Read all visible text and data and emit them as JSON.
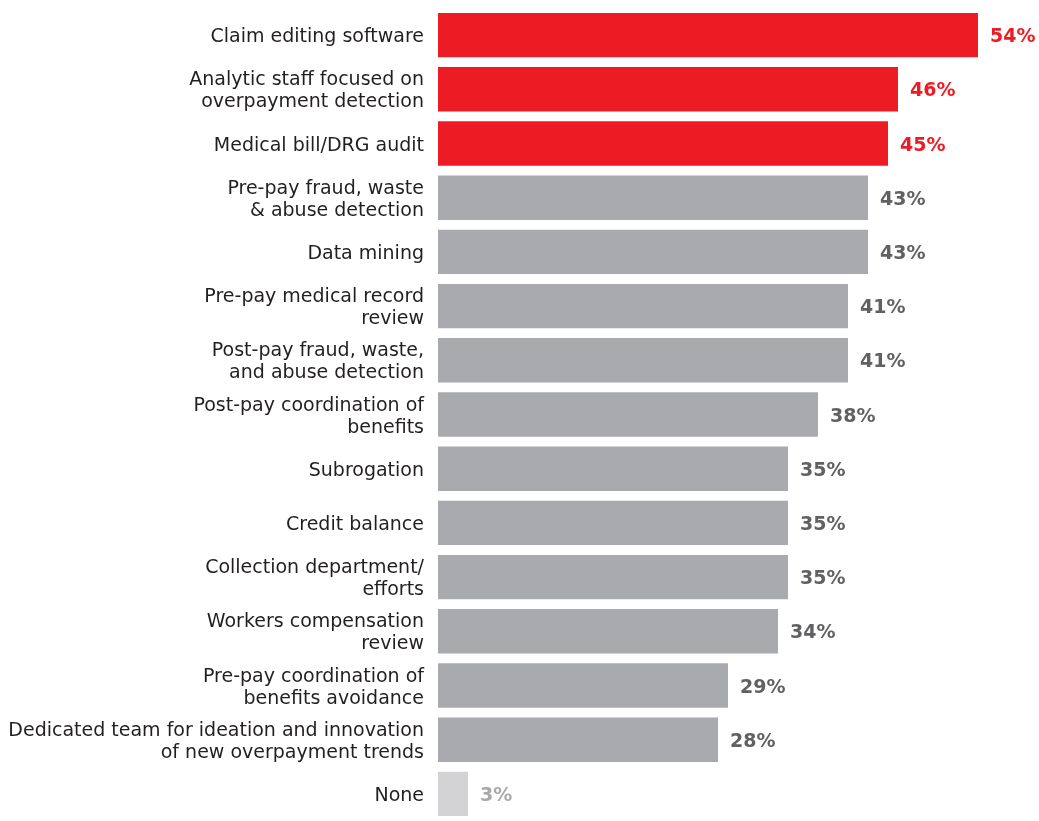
{
  "chart_data": {
    "type": "bar",
    "orientation": "horizontal",
    "categories": [
      "Claim editing software",
      "Analytic staff focused on\noverpayment detection",
      "Medical bill/DRG audit",
      "Pre-pay fraud, waste\n& abuse detection",
      "Data mining",
      "Pre-pay medical record\nreview",
      "Post-pay fraud, waste,\nand abuse detection",
      "Post-pay coordination of\nbenefits",
      "Subrogation",
      "Credit balance",
      "Collection department/\nefforts",
      "Workers compensation\nreview",
      "Pre-pay coordination of\nbenefits avoidance",
      "Dedicated team for ideation and innovation\nof new overpayment trends",
      "None"
    ],
    "values": [
      54,
      46,
      45,
      43,
      43,
      41,
      41,
      38,
      35,
      35,
      35,
      34,
      29,
      28,
      3
    ],
    "colors": [
      "#ed1c24",
      "#ed1c24",
      "#ed1c24",
      "#a9aaae",
      "#a9aaae",
      "#a9aaae",
      "#a9aaae",
      "#a9aaae",
      "#a9aaae",
      "#a9aaae",
      "#a9aaae",
      "#a9aaae",
      "#a9aaae",
      "#a9aaae",
      "#d3d3d5"
    ],
    "value_labels": [
      "54%",
      "46%",
      "45%",
      "43%",
      "43%",
      "41%",
      "41%",
      "38%",
      "35%",
      "35%",
      "35%",
      "34%",
      "29%",
      "28%",
      "3%"
    ]
  }
}
